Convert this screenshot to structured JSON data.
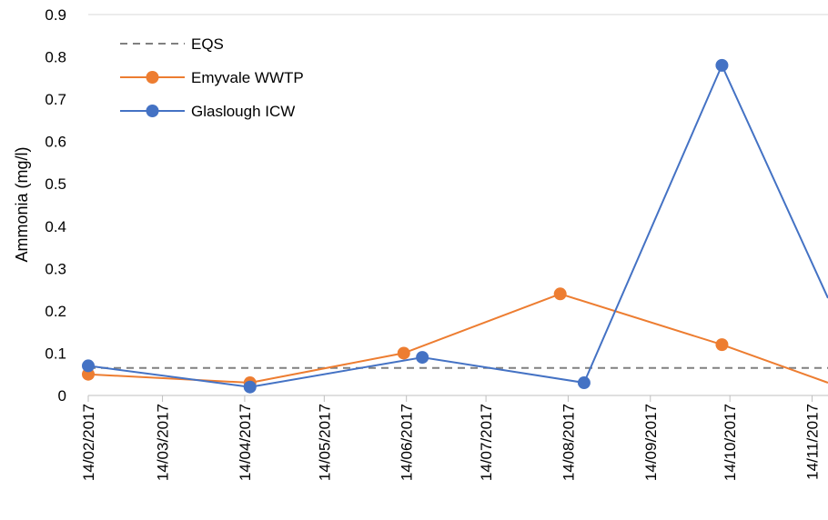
{
  "chart_data": {
    "type": "line",
    "title": "",
    "xlabel": "",
    "ylabel": "Ammonia (mg/l)",
    "ylim": [
      0,
      0.9
    ],
    "yticks": [
      "0",
      "0.1",
      "0.2",
      "0.3",
      "0.4",
      "0.5",
      "0.6",
      "0.7",
      "0.8",
      "0.9"
    ],
    "xlim": [
      "2017-02-14",
      "2017-11-20"
    ],
    "xticks": [
      {
        "date": "2017-02-14",
        "label": "14/02/2017"
      },
      {
        "date": "2017-03-14",
        "label": "14/03/2017"
      },
      {
        "date": "2017-04-14",
        "label": "14/04/2017"
      },
      {
        "date": "2017-05-14",
        "label": "14/05/2017"
      },
      {
        "date": "2017-06-14",
        "label": "14/06/2017"
      },
      {
        "date": "2017-07-14",
        "label": "14/07/2017"
      },
      {
        "date": "2017-08-14",
        "label": "14/08/2017"
      },
      {
        "date": "2017-09-14",
        "label": "14/09/2017"
      },
      {
        "date": "2017-10-14",
        "label": "14/10/2017"
      },
      {
        "date": "2017-11-14",
        "label": "14/11/2017"
      }
    ],
    "legend_position": "top-left",
    "grid": false,
    "series": [
      {
        "name": "EQS",
        "style": "dashed",
        "color": "#808080",
        "markers": false,
        "points": [
          {
            "x": "2017-02-14",
            "y": 0.065
          },
          {
            "x": "2017-11-20",
            "y": 0.065
          }
        ]
      },
      {
        "name": "Emyvale WWTP",
        "style": "solid",
        "color": "#ED7D31",
        "markers": true,
        "points": [
          {
            "x": "2017-02-14",
            "y": 0.05
          },
          {
            "x": "2017-04-16",
            "y": 0.03
          },
          {
            "x": "2017-06-13",
            "y": 0.1
          },
          {
            "x": "2017-08-11",
            "y": 0.24
          },
          {
            "x": "2017-10-11",
            "y": 0.12
          },
          {
            "x": "2017-11-20",
            "y": 0.03,
            "marker": false
          }
        ]
      },
      {
        "name": "Glaslough ICW",
        "style": "solid",
        "color": "#4472C4",
        "markers": true,
        "points": [
          {
            "x": "2017-02-14",
            "y": 0.07
          },
          {
            "x": "2017-04-16",
            "y": 0.02
          },
          {
            "x": "2017-06-20",
            "y": 0.09
          },
          {
            "x": "2017-08-20",
            "y": 0.03
          },
          {
            "x": "2017-10-11",
            "y": 0.78
          },
          {
            "x": "2017-11-20",
            "y": 0.23,
            "marker": false
          }
        ]
      }
    ]
  }
}
